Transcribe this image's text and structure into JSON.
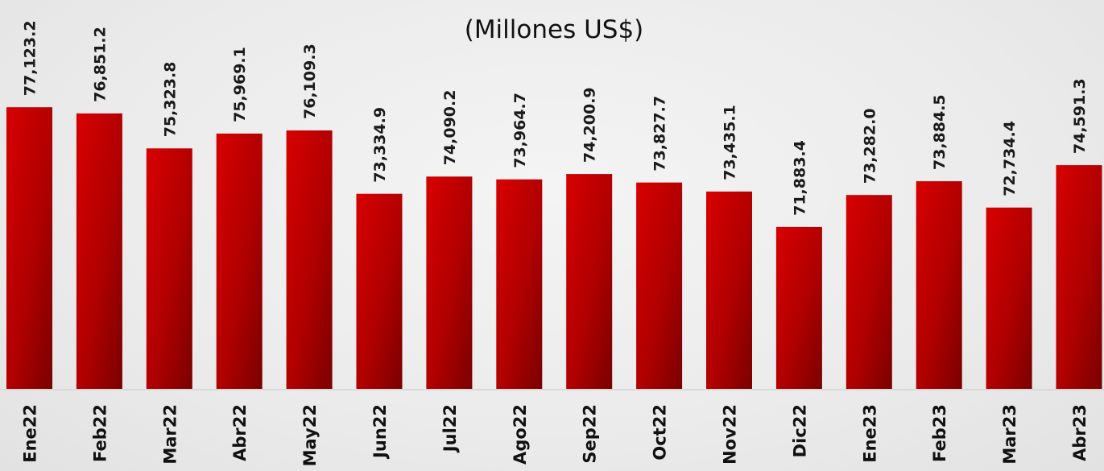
{
  "chart_data": {
    "type": "bar",
    "title": "(Millones US$)",
    "categories": [
      "Ene22",
      "Feb22",
      "Mar22",
      "Abr22",
      "May22",
      "Jun22",
      "Jul22",
      "Ago22",
      "Sep22",
      "Oct22",
      "Nov22",
      "Dic22",
      "Ene23",
      "Feb23",
      "Mar23",
      "Abr23"
    ],
    "values": [
      77123.2,
      76851.2,
      75323.8,
      75969.1,
      76109.3,
      73334.9,
      74090.2,
      73964.7,
      74200.9,
      73827.7,
      73435.1,
      71883.4,
      73282.0,
      73884.5,
      72734.4,
      74591.3
    ],
    "value_labels": [
      "77,123.2",
      "76,851.2",
      "75,323.8",
      "75,969.1",
      "76,109.3",
      "73,334.9",
      "74,090.2",
      "73,964.7",
      "74,200.9",
      "73,827.7",
      "73,435.1",
      "71,883.4",
      "73,282.0",
      "73,884.5",
      "72,734.4",
      "74,591.3"
    ],
    "xlabel": "",
    "ylabel": "",
    "ylim": [
      64800,
      77200
    ],
    "grid": false,
    "colors": {
      "bar_light": "#d80000",
      "bar_dark": "#7a0000",
      "background": "#ececec"
    }
  }
}
